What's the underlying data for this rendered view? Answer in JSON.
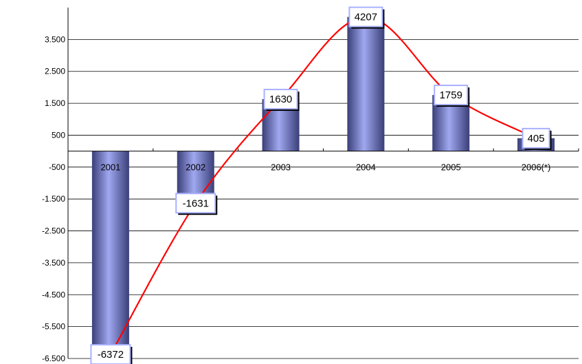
{
  "chart_data": {
    "type": "bar",
    "categories": [
      "2001",
      "2002",
      "2003",
      "2004",
      "2005",
      "2006(*)"
    ],
    "values": [
      -6372,
      -1631,
      1630,
      4207,
      1759,
      405
    ],
    "data_labels": [
      "-6372",
      "-1631",
      "1630",
      "4207",
      "1759",
      "405"
    ],
    "ylim": [
      -6500,
      4500
    ],
    "yticks": [
      -6500,
      -5500,
      -4500,
      -3500,
      -2500,
      -1500,
      -500,
      500,
      1500,
      2500,
      3500
    ],
    "ytick_labels": [
      "-6.500",
      "-5.500",
      "-4.500",
      "-3.500",
      "-2.500",
      "-1.500",
      "-500",
      "500",
      "1.500",
      "2.500",
      "3.500"
    ],
    "grid": true,
    "trendline": true,
    "colors": {
      "bar_light": "#a0a8f0",
      "bar_dark": "#3a3f78",
      "trendline": "#ff0000",
      "label_border": "#a8b0ff"
    }
  }
}
